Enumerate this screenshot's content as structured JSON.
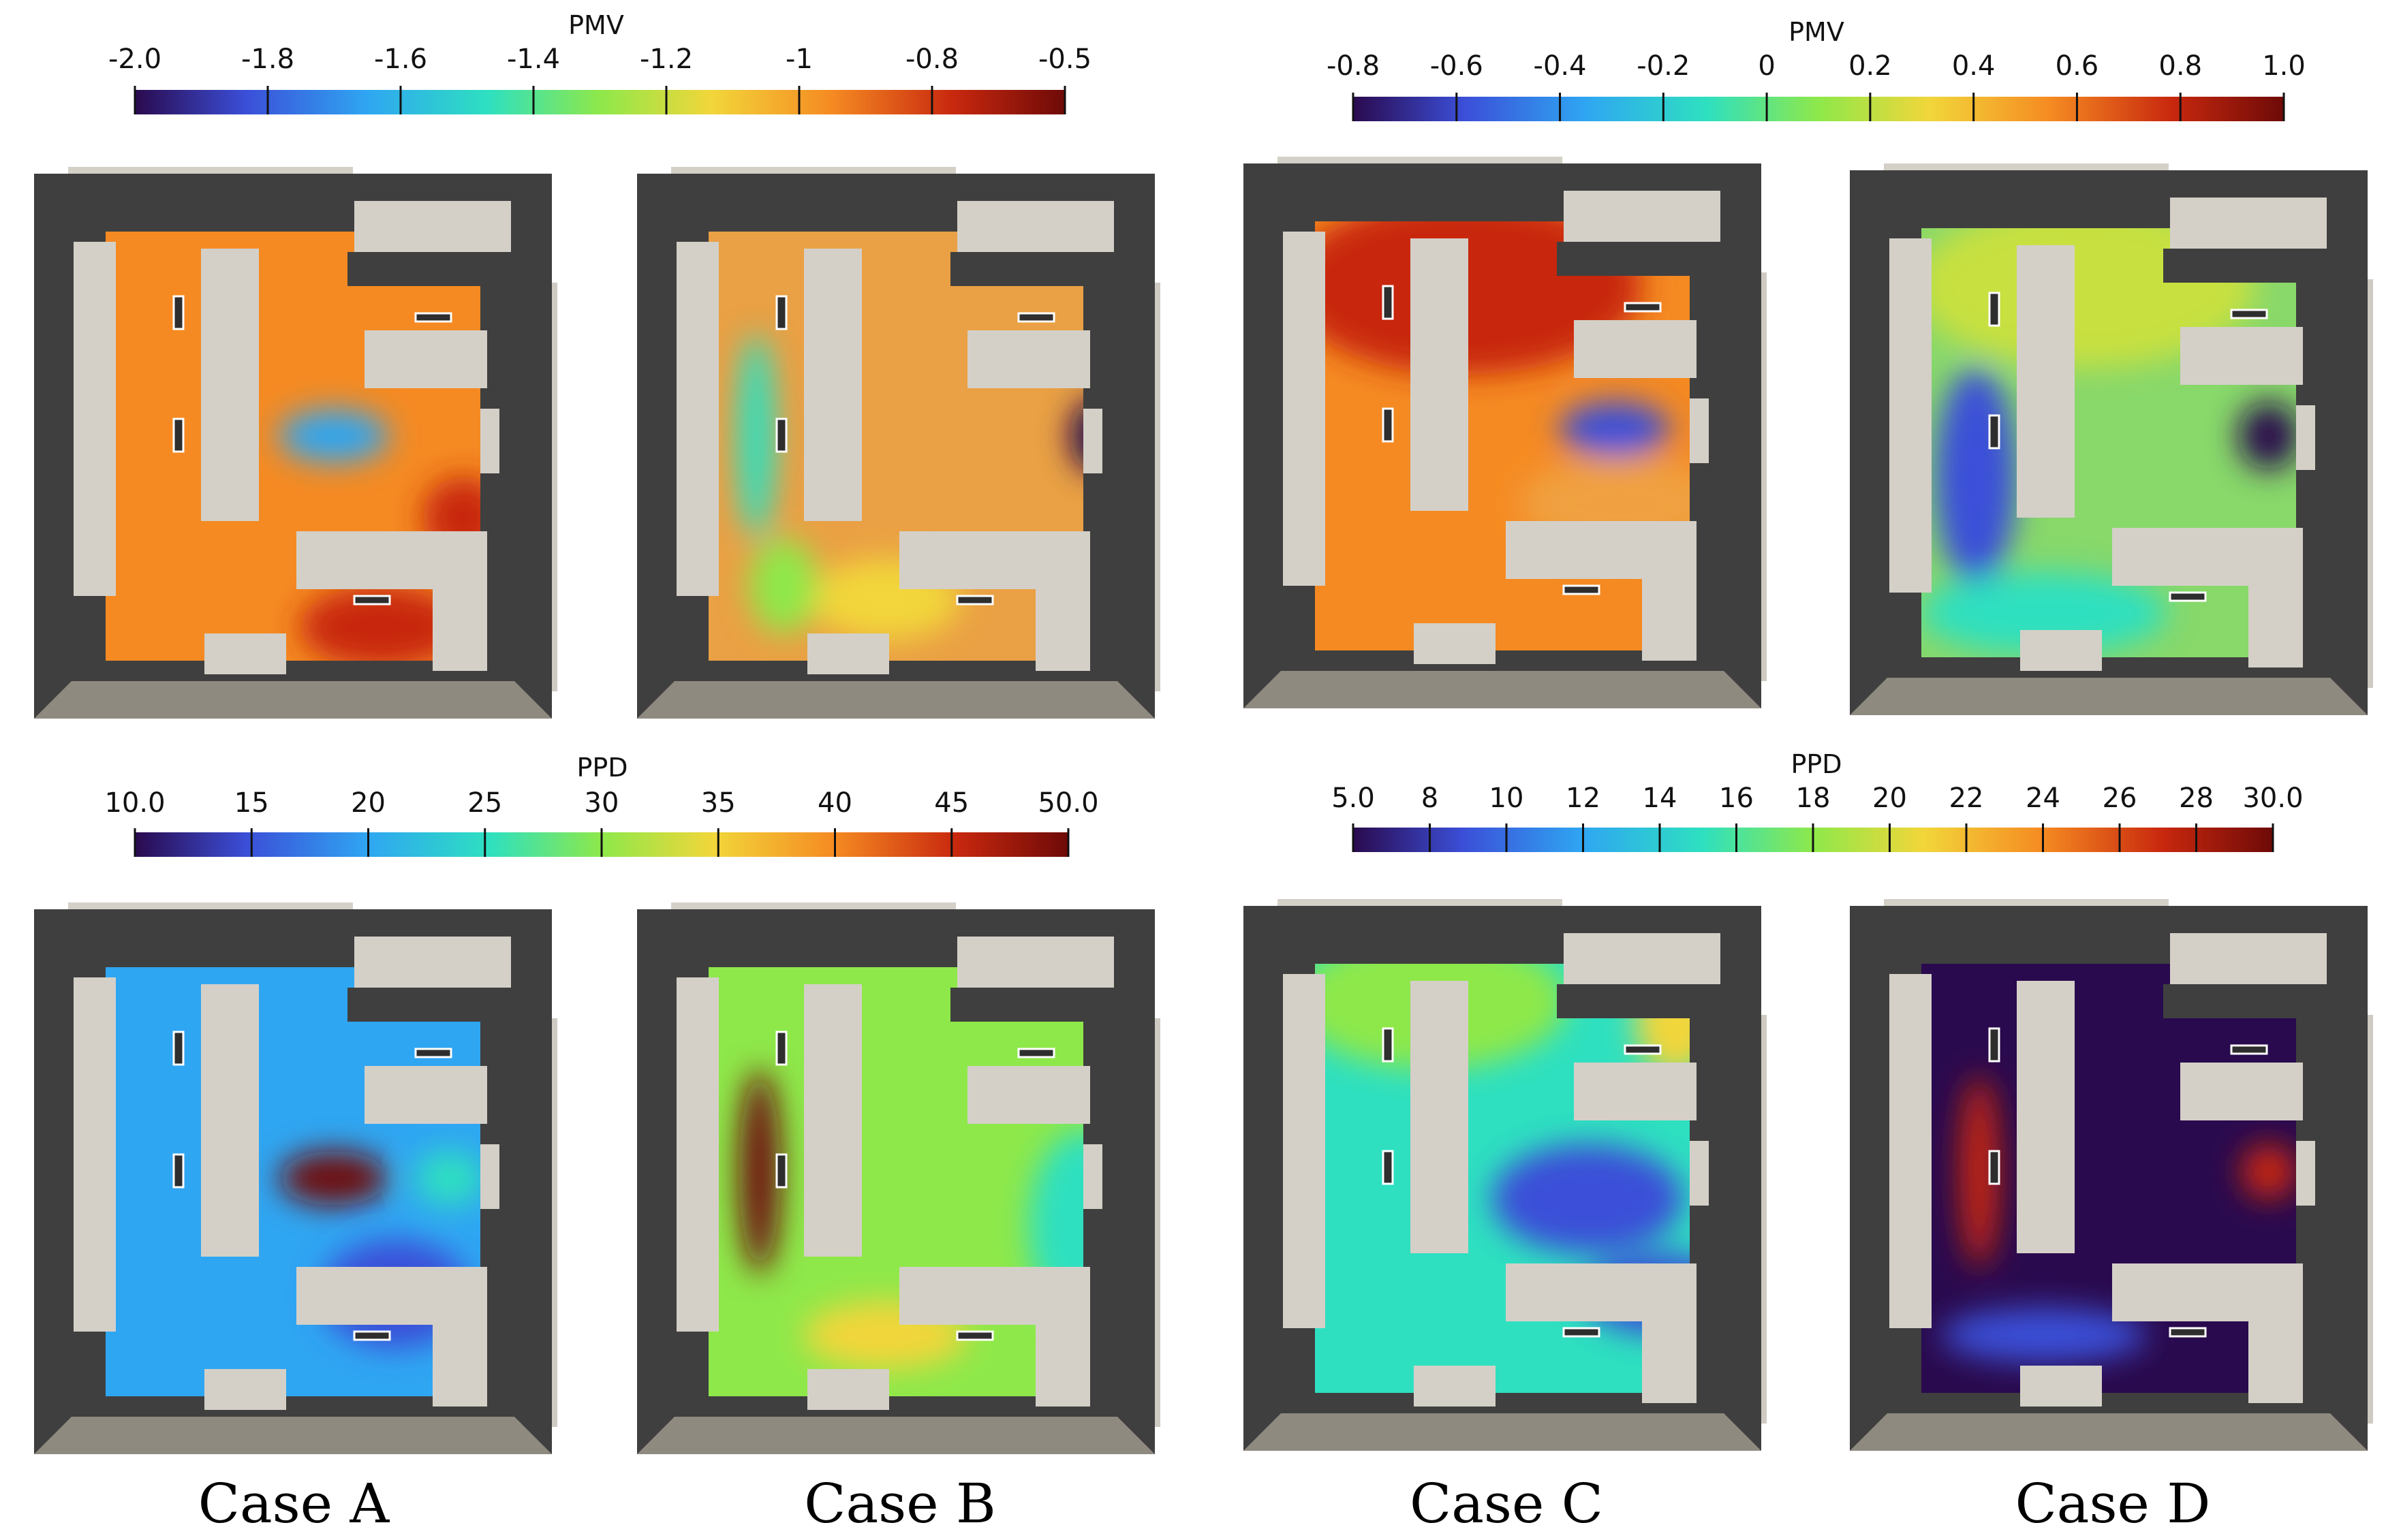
{
  "colorbars": [
    {
      "id": "pmv-ab",
      "title": "PMV",
      "ticks": [
        "-2.0",
        "-1.8",
        "-1.6",
        "-1.4",
        "-1.2",
        "-1",
        "-0.8",
        "-0.5"
      ]
    },
    {
      "id": "pmv-cd",
      "title": "PMV",
      "ticks": [
        "-0.8",
        "-0.6",
        "-0.4",
        "-0.2",
        "0",
        "0.2",
        "0.4",
        "0.6",
        "0.8",
        "1.0"
      ]
    },
    {
      "id": "ppd-ab",
      "title": "PPD",
      "ticks": [
        "10.0",
        "15",
        "20",
        "25",
        "30",
        "35",
        "40",
        "45",
        "50.0"
      ]
    },
    {
      "id": "ppd-cd",
      "title": "PPD",
      "ticks": [
        "5.0",
        "8",
        "10",
        "12",
        "14",
        "16",
        "18",
        "20",
        "22",
        "24",
        "26",
        "28",
        "30.0"
      ]
    }
  ],
  "cases": [
    "Case A",
    "Case B",
    "Case C",
    "Case D"
  ],
  "colors": {
    "wall_dark": "#3f3f3f",
    "floor_gray": "#8f8a80",
    "furniture": "#d4d0c8",
    "colormap": [
      "#2a0a4e",
      "#3b4fd8",
      "#2fa6f2",
      "#2ee0c0",
      "#8ee84a",
      "#f2d63a",
      "#f58a22",
      "#c8280e",
      "#6e0a08"
    ]
  }
}
